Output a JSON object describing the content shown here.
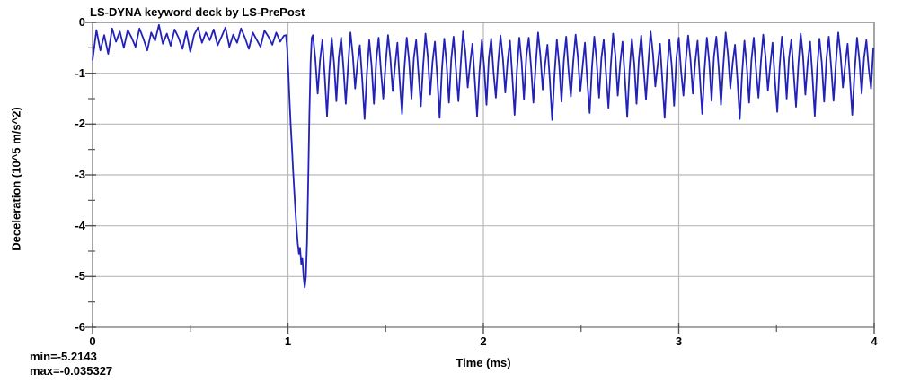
{
  "window": {
    "background": "#ffffff"
  },
  "chart_data": {
    "type": "line",
    "title": "LS-DYNA keyword deck by LS-PrePost",
    "xlabel": "Time (ms)",
    "ylabel": "Deceleration (10^5 m/s^2)",
    "xlim": [
      0,
      4
    ],
    "ylim": [
      -6,
      0
    ],
    "x_ticks_major": [
      0,
      1,
      2,
      3,
      4
    ],
    "x_ticks_minor": [
      0.5,
      1.5,
      2.5,
      3.5
    ],
    "y_ticks_major": [
      0,
      -1,
      -2,
      -3,
      -4,
      -5,
      -6
    ],
    "y_ticks_minor": [
      -0.5,
      -1.5,
      -2.5,
      -3.5,
      -4.5,
      -5.5
    ],
    "grid": true,
    "legend_position": "none",
    "annotations": {
      "min_label": "min=-5.2143",
      "max_label": "max=-0.035327"
    },
    "colors": {
      "line": "#2222b8",
      "grid": "#b9b9b9",
      "frame": "#8f8f8f",
      "text": "#000000"
    },
    "stats": {
      "min": -5.2143,
      "max": -0.035327
    },
    "series": [
      {
        "name": "Deceleration",
        "segments": [
          {
            "t0": 0.0,
            "dt": 0.02,
            "y": [
              -0.75,
              -0.15,
              -0.55,
              -0.25,
              -0.62,
              -0.12,
              -0.38,
              -0.18,
              -0.5,
              -0.15,
              -0.3,
              -0.48,
              -0.12,
              -0.32,
              -0.55,
              -0.2,
              -0.36,
              -0.05,
              -0.42,
              -0.22,
              -0.46,
              -0.14,
              -0.3,
              -0.52,
              -0.18,
              -0.58,
              -0.24,
              -0.1,
              -0.4,
              -0.2,
              -0.35,
              -0.14,
              -0.45,
              -0.28,
              -0.1,
              -0.48,
              -0.24,
              -0.4,
              -0.12,
              -0.3,
              -0.52,
              -0.2,
              -0.34,
              -0.48,
              -0.16,
              -0.28,
              -0.44,
              -0.2,
              -0.38,
              -0.26
            ]
          },
          {
            "t0": 0.99,
            "dt": 0.006,
            "y": [
              -0.25,
              -0.5,
              -0.95,
              -1.5,
              -2.0,
              -2.45,
              -2.9,
              -3.3,
              -3.7,
              -4.05,
              -4.35,
              -4.55,
              -4.45,
              -4.75,
              -4.65,
              -5.0,
              -5.2143,
              -5.0,
              -4.3,
              -3.1,
              -1.8,
              -0.8,
              -0.3
            ]
          },
          {
            "t0": 1.128,
            "dt": 0.012,
            "y": [
              -0.25,
              -0.7,
              -1.4,
              -0.75,
              -0.35,
              -1.05,
              -1.85,
              -0.95,
              -0.3,
              -0.8,
              -1.55,
              -0.7,
              -0.3,
              -0.9,
              -1.6,
              -0.85,
              -0.2,
              -0.65,
              -1.3,
              -0.8,
              -0.45,
              -1.1,
              -1.9,
              -1.0,
              -0.35,
              -0.85,
              -1.6,
              -0.75,
              -0.3,
              -0.95,
              -1.5,
              -0.8,
              -0.25,
              -0.7,
              -1.35,
              -0.85,
              -0.4,
              -1.15,
              -1.8,
              -0.9,
              -0.3,
              -0.75,
              -1.5,
              -0.7,
              -0.35,
              -1.0,
              -1.65,
              -0.85,
              -0.22,
              -0.68,
              -1.42,
              -0.78,
              -0.38,
              -1.08,
              -1.88,
              -0.92,
              -0.32,
              -0.82,
              -1.58,
              -0.72,
              -0.28,
              -0.92,
              -1.55,
              -0.82,
              -0.18,
              -0.6,
              -1.28,
              -0.82,
              -0.42,
              -1.12,
              -1.85,
              -0.98,
              -0.35,
              -0.88,
              -1.62,
              -0.7,
              -0.32,
              -0.98,
              -1.48,
              -0.78,
              -0.26,
              -0.72,
              -1.38,
              -0.76,
              -0.36,
              -1.06,
              -1.82,
              -0.94,
              -0.3,
              -0.78,
              -1.52,
              -0.68,
              -0.3,
              -0.88,
              -1.58,
              -0.84,
              -0.2,
              -0.66,
              -1.32,
              -0.82,
              -0.44,
              -1.14,
              -1.92,
              -1.02,
              -0.34,
              -0.84,
              -1.56,
              -0.74,
              -0.28,
              -0.94,
              -1.46,
              -0.78,
              -0.24,
              -0.7,
              -1.36,
              -0.86,
              -0.4,
              -1.16,
              -1.78,
              -0.88,
              -0.28,
              -0.76,
              -1.48,
              -0.7,
              -0.34,
              -1.02,
              -1.68,
              -0.86,
              -0.22,
              -0.66,
              -1.44,
              -0.8,
              -0.38,
              -1.1,
              -1.86,
              -0.94,
              -0.32,
              -0.8,
              -1.6,
              -0.72,
              -0.26,
              -0.9,
              -1.52,
              -0.8,
              -0.18,
              -0.62,
              -1.26,
              -0.84,
              -0.42,
              -1.14,
              -1.88,
              -0.96,
              -0.34,
              -0.86,
              -1.64,
              -0.7,
              -0.3,
              -0.96,
              -1.44,
              -0.76,
              -0.26,
              -0.72,
              -1.4,
              -0.78,
              -0.36,
              -1.08,
              -1.8,
              -0.92,
              -0.3,
              -0.78,
              -1.54,
              -0.68,
              -0.28,
              -0.88,
              -1.62,
              -0.84,
              -0.2,
              -0.64,
              -1.3,
              -0.8,
              -0.44,
              -1.12,
              -1.9,
              -1.0,
              -0.36,
              -0.86,
              -1.58,
              -0.74,
              -0.3,
              -0.94,
              -1.48,
              -0.78,
              -0.24,
              -0.68,
              -1.34,
              -0.84,
              -0.4,
              -1.14,
              -1.76,
              -0.88,
              -0.28,
              -0.74,
              -1.5,
              -0.7,
              -0.34,
              -1.0,
              -1.66,
              -0.84,
              -0.22,
              -0.66,
              -1.42,
              -0.78,
              -0.38,
              -1.06,
              -1.84,
              -0.92,
              -0.32,
              -0.8,
              -1.56,
              -0.72,
              -0.28,
              -0.9,
              -1.54,
              -0.8,
              -0.2,
              -0.64,
              -1.28,
              -0.82,
              -0.42,
              -1.1,
              -1.82,
              -0.94,
              -0.3,
              -0.74,
              -1.4,
              -0.7,
              -0.35,
              -0.9,
              -1.3,
              -0.5
            ]
          }
        ]
      }
    ]
  }
}
